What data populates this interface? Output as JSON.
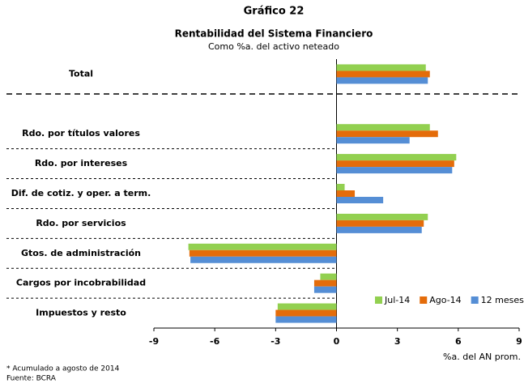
{
  "chart_data": {
    "type": "barh",
    "title": "Gráfico 22",
    "subtitle": "Rentabilidad del Sistema Financiero",
    "subtitle2": "Como %a. del activo neteado",
    "x_label": "%a. del AN prom.",
    "footnotes": [
      "* Acumulado a agosto de 2014",
      "Fuente: BCRA"
    ],
    "categories": [
      "Total",
      null,
      "Rdo. por títulos valores",
      "Rdo. por intereses",
      "Dif. de cotiz. y oper. a term.",
      "Rdo. por servicios",
      "Gtos. de administración",
      "Cargos por incobrabilidad",
      "Impuestos y resto"
    ],
    "series": [
      {
        "name": "Jul-14",
        "color": "#92d050",
        "values": [
          4.4,
          null,
          4.6,
          5.9,
          0.4,
          4.5,
          -7.3,
          -0.8,
          -2.9
        ]
      },
      {
        "name": "Ago-14",
        "color": "#e46c0a",
        "values": [
          4.6,
          null,
          5.0,
          5.8,
          0.9,
          4.3,
          -7.25,
          -1.1,
          -3.0
        ]
      },
      {
        "name": "12 meses *",
        "color": "#558ed5",
        "values": [
          4.5,
          null,
          3.6,
          5.7,
          2.3,
          4.2,
          -7.2,
          -1.1,
          -3.0
        ]
      }
    ],
    "xlim": [
      -9,
      9
    ],
    "xticks": [
      -9,
      -6,
      -3,
      0,
      3,
      6,
      9
    ],
    "legend": "lower right"
  }
}
